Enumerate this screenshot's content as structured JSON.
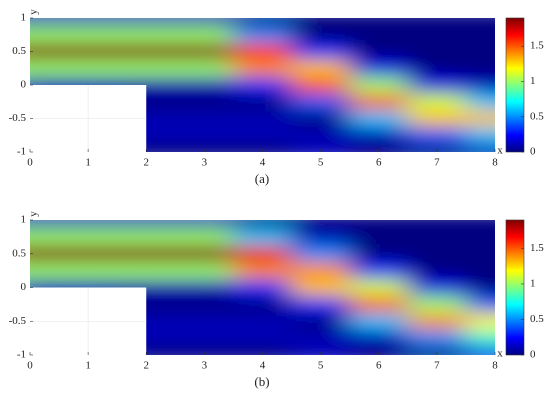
{
  "chart_data": [
    {
      "type": "heatmap",
      "title": "(a)",
      "x_label": "x",
      "y_label": "y",
      "colormap": "jet",
      "x": [
        0,
        1,
        2,
        3,
        4,
        5,
        6,
        7,
        8
      ],
      "y": [
        1,
        0.75,
        0.5,
        0.25,
        0,
        -0.25,
        -0.5,
        -0.75,
        -1
      ],
      "z": [
        [
          0.1,
          0.1,
          0.1,
          0.1,
          0,
          0,
          0,
          0,
          0
        ],
        [
          1.0,
          1.0,
          1.0,
          1.0,
          0.5,
          0,
          0,
          0,
          0
        ],
        [
          1.9,
          1.9,
          1.9,
          1.9,
          1.6,
          0.3,
          0,
          0,
          0
        ],
        [
          1.0,
          1.0,
          1.0,
          1.0,
          1.4,
          1.3,
          0.2,
          0,
          0
        ],
        [
          0.1,
          0.1,
          0.1,
          0.1,
          0.3,
          1.5,
          1.0,
          0.2,
          0.1
        ],
        [
          null,
          null,
          0,
          0,
          0,
          0.4,
          1.5,
          1.1,
          0.6
        ],
        [
          null,
          null,
          0.1,
          0.1,
          0.1,
          0,
          0.6,
          1.3,
          1.3
        ],
        [
          null,
          null,
          0.1,
          0.1,
          0.1,
          0.1,
          0.1,
          0.4,
          0.6
        ],
        [
          null,
          null,
          0,
          0,
          0,
          0.1,
          0,
          0,
          0.1
        ]
      ],
      "xlim": [
        0,
        8
      ],
      "ylim": [
        -1,
        1
      ],
      "xticks": [
        0,
        1,
        2,
        3,
        4,
        5,
        6,
        7,
        8
      ],
      "yticks": [
        -1,
        -0.5,
        0,
        0.5,
        1
      ],
      "clim": [
        0,
        1.9
      ],
      "cticks": [
        0,
        0.5,
        1,
        1.5
      ]
    },
    {
      "type": "heatmap",
      "title": "(b)",
      "x_label": "x",
      "y_label": "y",
      "colormap": "jet",
      "x": [
        0,
        1,
        2,
        3,
        4,
        5,
        6,
        7,
        8
      ],
      "y": [
        1,
        0.75,
        0.5,
        0.25,
        0,
        -0.25,
        -0.5,
        -0.75,
        -1
      ],
      "z": [
        [
          0.1,
          0.1,
          0.1,
          0.1,
          0,
          0,
          0,
          0,
          0
        ],
        [
          1.0,
          1.0,
          1.0,
          1.0,
          0.6,
          0.1,
          0,
          0,
          0
        ],
        [
          1.9,
          1.9,
          1.9,
          1.9,
          1.7,
          0.5,
          0,
          0,
          0
        ],
        [
          1.0,
          1.0,
          1.0,
          1.0,
          1.4,
          1.4,
          0.3,
          0,
          0
        ],
        [
          0.1,
          0.1,
          0.1,
          0.1,
          0.3,
          1.3,
          1.1,
          0.2,
          0
        ],
        [
          null,
          null,
          0,
          0,
          0,
          0.3,
          1.5,
          1.0,
          0.4
        ],
        [
          null,
          null,
          0.1,
          0.1,
          0.1,
          0,
          0.6,
          1.4,
          1.2
        ],
        [
          null,
          null,
          0.1,
          0.1,
          0.1,
          0.1,
          0.1,
          0.5,
          0.8
        ],
        [
          null,
          null,
          0,
          0,
          0,
          0.1,
          0,
          0,
          0.2
        ]
      ],
      "xlim": [
        0,
        8
      ],
      "ylim": [
        -1,
        1
      ],
      "xticks": [
        0,
        1,
        2,
        3,
        4,
        5,
        6,
        7,
        8
      ],
      "yticks": [
        -1,
        -0.5,
        0,
        0.5,
        1
      ],
      "clim": [
        0,
        1.9
      ],
      "cticks": [
        0,
        0.5,
        1,
        1.5
      ]
    }
  ]
}
